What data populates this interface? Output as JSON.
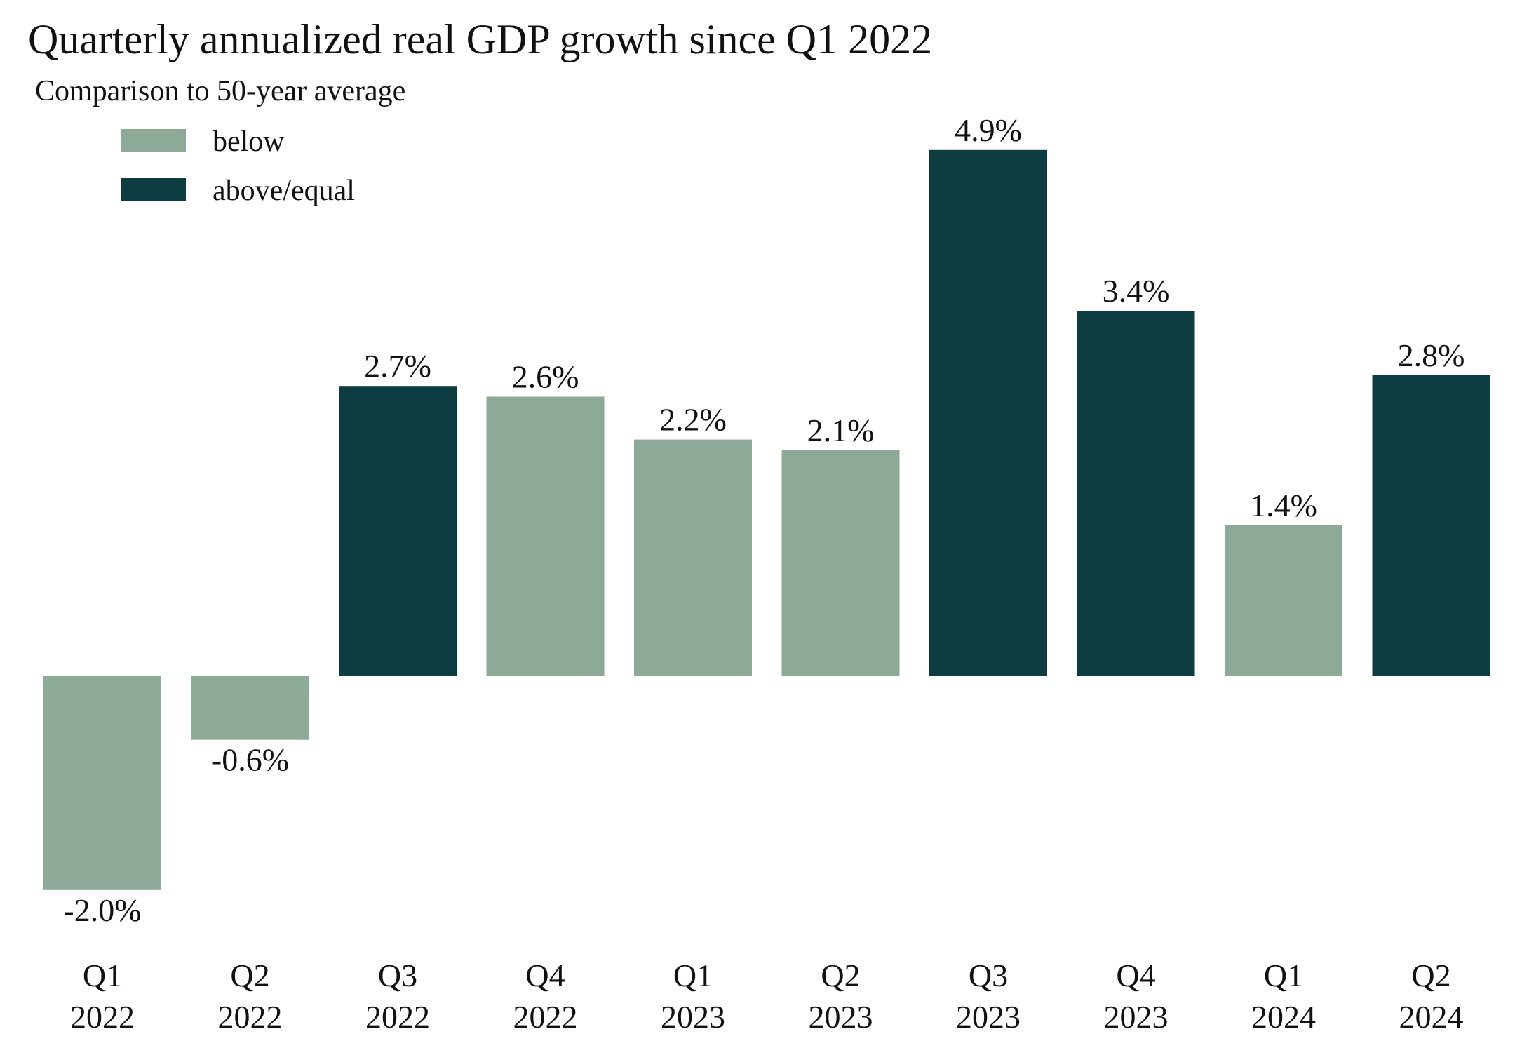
{
  "chart_data": {
    "type": "bar",
    "title": "Quarterly annualized real GDP growth since Q1 2022",
    "legend": {
      "title": "Comparison to 50-year average",
      "placement": "top-left",
      "entries": [
        {
          "label": "below",
          "color": "#8caa97"
        },
        {
          "label": "above/equal",
          "color": "#0d3d40"
        }
      ]
    },
    "categories": [
      [
        "Q1",
        "2022"
      ],
      [
        "Q2",
        "2022"
      ],
      [
        "Q3",
        "2022"
      ],
      [
        "Q4",
        "2022"
      ],
      [
        "Q1",
        "2023"
      ],
      [
        "Q2",
        "2023"
      ],
      [
        "Q3",
        "2023"
      ],
      [
        "Q4",
        "2023"
      ],
      [
        "Q1",
        "2024"
      ],
      [
        "Q2",
        "2024"
      ]
    ],
    "values": [
      -2.0,
      -0.6,
      2.7,
      2.6,
      2.2,
      2.1,
      4.9,
      3.4,
      1.4,
      2.8
    ],
    "value_labels": [
      "-2.0%",
      "-0.6%",
      "2.7%",
      "2.6%",
      "2.2%",
      "2.1%",
      "4.9%",
      "3.4%",
      "1.4%",
      "2.8%"
    ],
    "comparison": [
      "below",
      "below",
      "above/equal",
      "below",
      "below",
      "below",
      "above/equal",
      "above/equal",
      "below",
      "above/equal"
    ],
    "xlabel": "",
    "ylabel": "",
    "grid": false
  }
}
